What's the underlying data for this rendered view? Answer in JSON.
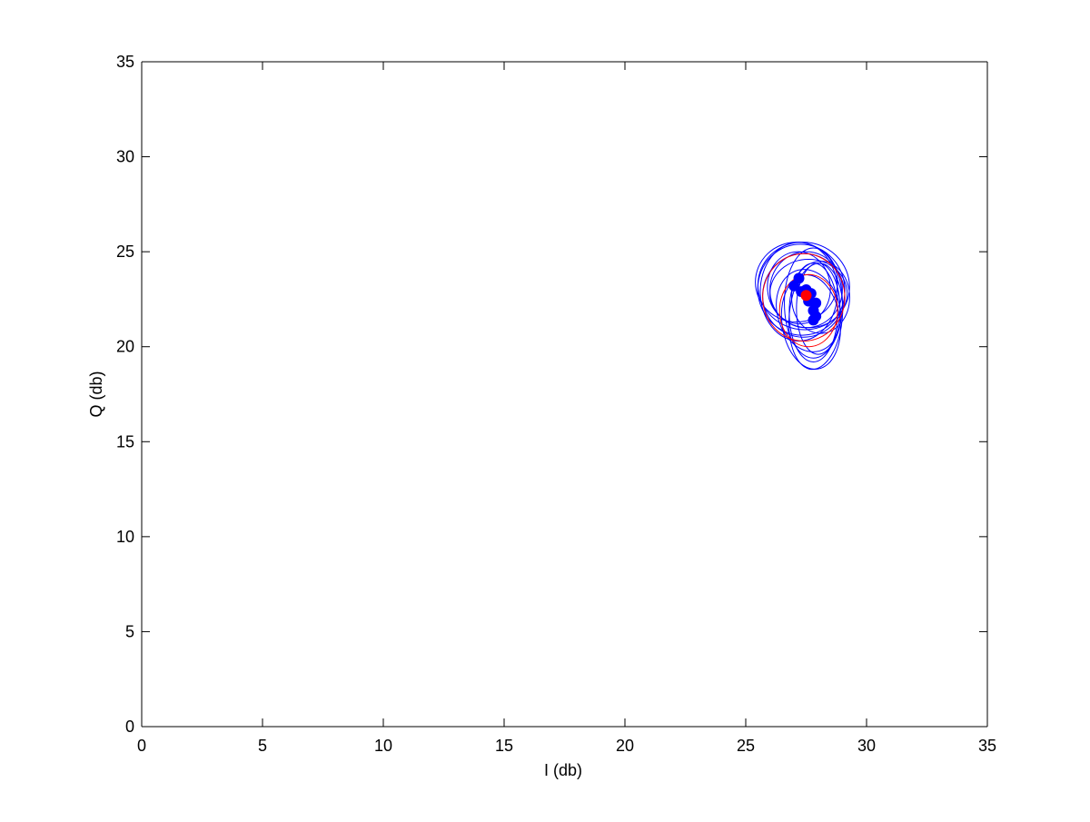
{
  "chart_data": {
    "type": "scatter",
    "title": "",
    "xlabel": "I (db)",
    "ylabel": "Q (db)",
    "xlim": [
      0,
      35
    ],
    "ylim": [
      0,
      35
    ],
    "xticks": [
      0,
      5,
      10,
      15,
      20,
      25,
      30,
      35
    ],
    "yticks": [
      0,
      5,
      10,
      15,
      20,
      25,
      30,
      35
    ],
    "grid": false,
    "legend": "none",
    "colors": {
      "blue": "#0000ff",
      "red": "#ff0000"
    },
    "series": [
      {
        "color": "#0000ff",
        "kind": "points",
        "points": [
          [
            27.2,
            23.6
          ],
          [
            27.0,
            23.2
          ],
          [
            27.3,
            22.9
          ],
          [
            27.5,
            23.0
          ],
          [
            27.7,
            22.8
          ],
          [
            27.9,
            22.3
          ],
          [
            27.8,
            21.9
          ],
          [
            27.9,
            21.6
          ],
          [
            27.8,
            21.4
          ],
          [
            27.6,
            22.4
          ]
        ]
      },
      {
        "color": "#ff0000",
        "kind": "points",
        "points": [
          [
            27.5,
            22.7
          ]
        ]
      },
      {
        "color": "#0000ff",
        "kind": "ellipses",
        "ellipses": [
          {
            "cx": 27.2,
            "cy": 22.9,
            "rx": 1.6,
            "ry": 2.6,
            "angle": 0
          },
          {
            "cx": 27.3,
            "cy": 23.0,
            "rx": 1.8,
            "ry": 2.4,
            "angle": 10
          },
          {
            "cx": 27.4,
            "cy": 22.7,
            "rx": 1.7,
            "ry": 2.2,
            "angle": -8
          },
          {
            "cx": 27.5,
            "cy": 23.0,
            "rx": 1.5,
            "ry": 2.0,
            "angle": 0
          },
          {
            "cx": 27.2,
            "cy": 23.1,
            "rx": 1.3,
            "ry": 1.9,
            "angle": 5
          },
          {
            "cx": 27.6,
            "cy": 22.8,
            "rx": 1.6,
            "ry": 1.8,
            "angle": 0
          },
          {
            "cx": 27.8,
            "cy": 21.8,
            "rx": 1.0,
            "ry": 2.6,
            "angle": 0
          },
          {
            "cx": 27.9,
            "cy": 21.6,
            "rx": 1.1,
            "ry": 2.8,
            "angle": -5
          },
          {
            "cx": 27.7,
            "cy": 21.3,
            "rx": 1.2,
            "ry": 2.5,
            "angle": 8
          },
          {
            "cx": 28.0,
            "cy": 22.0,
            "rx": 0.9,
            "ry": 2.4,
            "angle": 0
          },
          {
            "cx": 27.8,
            "cy": 22.3,
            "rx": 1.2,
            "ry": 2.9,
            "angle": 0
          },
          {
            "cx": 27.1,
            "cy": 23.4,
            "rx": 1.7,
            "ry": 2.1,
            "angle": 0
          },
          {
            "cx": 27.4,
            "cy": 23.2,
            "rx": 1.9,
            "ry": 2.3,
            "angle": -12
          },
          {
            "cx": 28.1,
            "cy": 22.6,
            "rx": 1.2,
            "ry": 1.9,
            "angle": 0
          },
          {
            "cx": 27.6,
            "cy": 21.9,
            "rx": 1.3,
            "ry": 2.2,
            "angle": 15
          }
        ]
      },
      {
        "color": "#ff0000",
        "kind": "ellipses",
        "ellipses": [
          {
            "cx": 27.4,
            "cy": 22.6,
            "rx": 1.7,
            "ry": 2.3,
            "angle": 0
          },
          {
            "cx": 27.6,
            "cy": 21.9,
            "rx": 1.2,
            "ry": 1.9,
            "angle": 0
          }
        ]
      }
    ]
  }
}
